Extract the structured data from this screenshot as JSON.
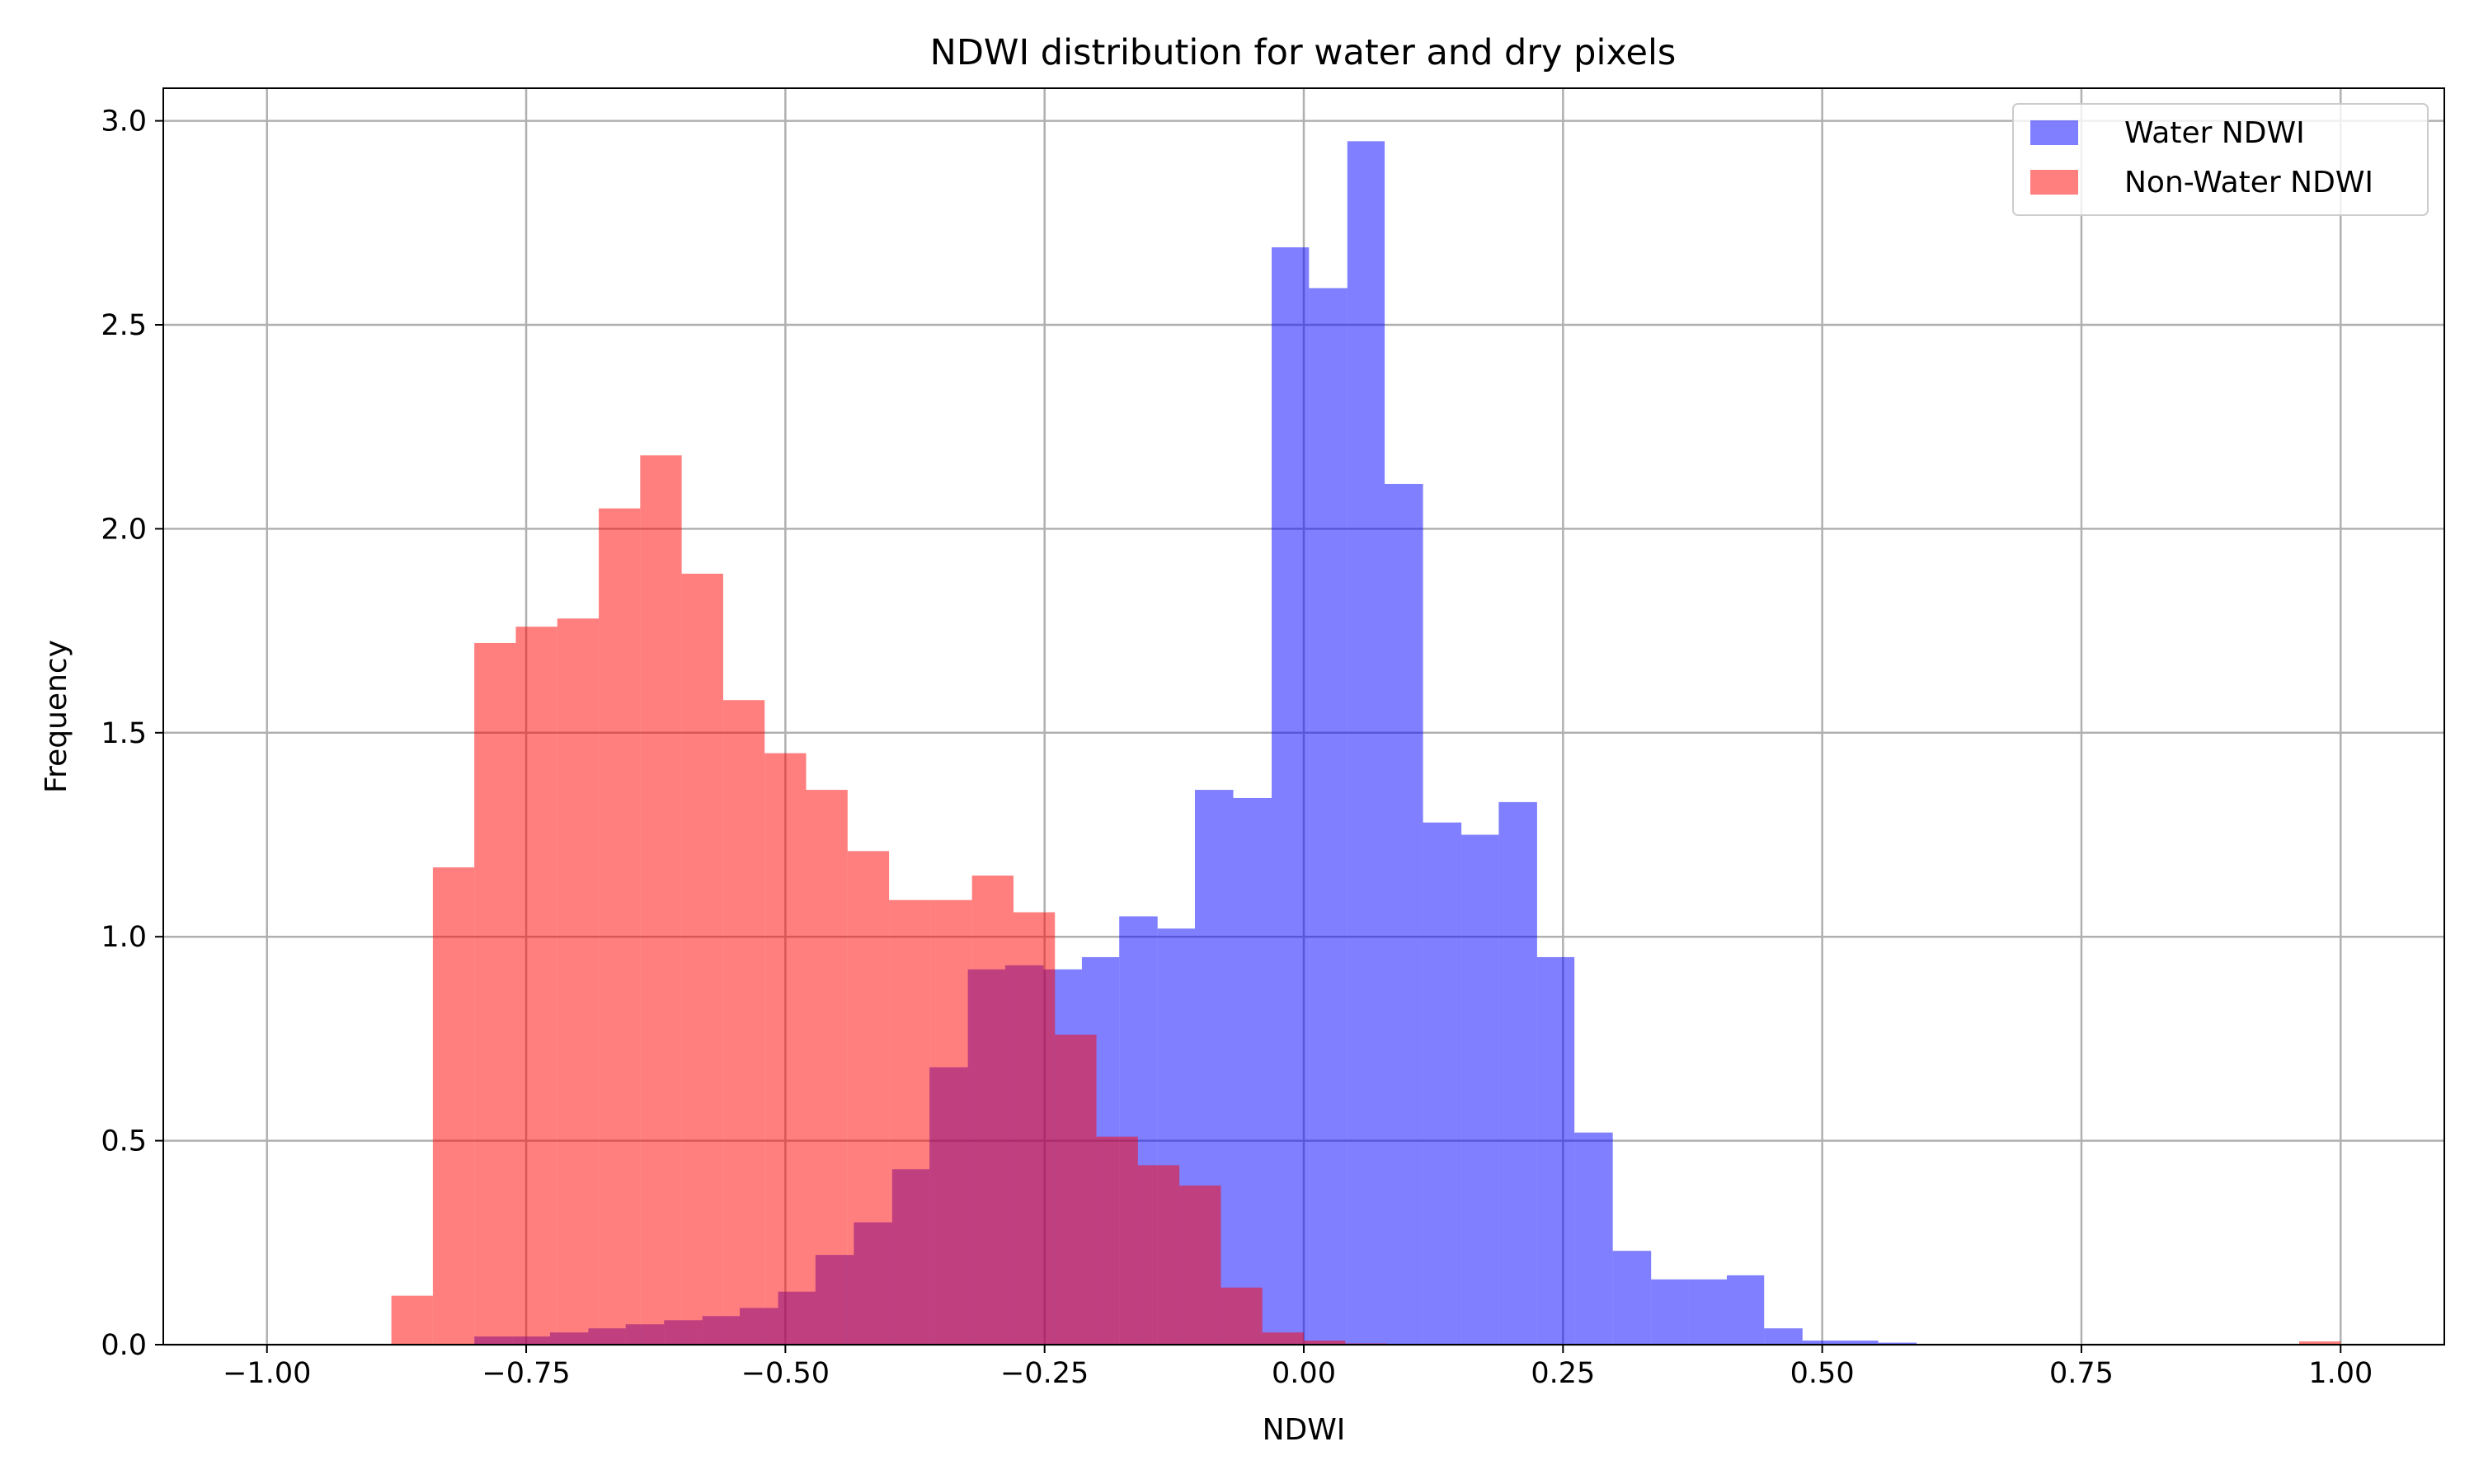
{
  "chart_data": {
    "type": "bar",
    "title": "NDWI distribution for water and dry pixels",
    "xlabel": "NDWI",
    "ylabel": "Frequency",
    "xlim": [
      -1.1,
      1.1
    ],
    "ylim": [
      0,
      3.08
    ],
    "xticks": [
      -1.0,
      -0.75,
      -0.5,
      -0.25,
      0.0,
      0.25,
      0.5,
      0.75,
      1.0
    ],
    "xtick_labels": [
      "−1.00",
      "−0.75",
      "−0.50",
      "−0.25",
      "0.00",
      "0.25",
      "0.50",
      "0.75",
      "1.00"
    ],
    "yticks": [
      0.0,
      0.5,
      1.0,
      1.5,
      2.0,
      2.5,
      3.0
    ],
    "ytick_labels": [
      "0.0",
      "0.5",
      "1.0",
      "1.5",
      "2.0",
      "2.5",
      "3.0"
    ],
    "grid": true,
    "legend_position": "top-right",
    "series": [
      {
        "name": "Water NDWI",
        "color": "#0000ff",
        "alpha": 0.5,
        "bin_edges": [
          -0.8,
          -0.763,
          -0.727,
          -0.69,
          -0.654,
          -0.617,
          -0.58,
          -0.544,
          -0.507,
          -0.471,
          -0.434,
          -0.397,
          -0.361,
          -0.324,
          -0.288,
          -0.251,
          -0.214,
          -0.178,
          -0.141,
          -0.105,
          -0.068,
          -0.031,
          0.005,
          0.042,
          0.078,
          0.115,
          0.152,
          0.188,
          0.225,
          0.261,
          0.298,
          0.335,
          0.371,
          0.408,
          0.444,
          0.481,
          0.518,
          0.554,
          0.591,
          0.627,
          0.664
        ],
        "values": [
          0.02,
          0.02,
          0.03,
          0.04,
          0.05,
          0.06,
          0.07,
          0.09,
          0.13,
          0.22,
          0.3,
          0.43,
          0.68,
          0.92,
          0.93,
          0.92,
          0.95,
          1.05,
          1.02,
          1.36,
          1.34,
          2.69,
          2.59,
          2.95,
          2.11,
          1.28,
          1.25,
          1.33,
          0.95,
          0.52,
          0.23,
          0.16,
          0.16,
          0.17,
          0.04,
          0.01,
          0.01,
          0.005,
          0.002,
          0.001
        ]
      },
      {
        "name": "Non-Water NDWI",
        "color": "#ff0000",
        "alpha": 0.5,
        "bin_edges": [
          -0.88,
          -0.84,
          -0.8,
          -0.76,
          -0.72,
          -0.68,
          -0.64,
          -0.6,
          -0.56,
          -0.52,
          -0.48,
          -0.44,
          -0.4,
          -0.36,
          -0.32,
          -0.28,
          -0.24,
          -0.2,
          -0.16,
          -0.12,
          -0.08,
          -0.04,
          0.0,
          0.04,
          0.08,
          0.12,
          0.16,
          0.2,
          0.24,
          0.28,
          0.32,
          0.36,
          0.4,
          0.44,
          0.48,
          0.52,
          0.56,
          0.6,
          0.64,
          0.68,
          0.72,
          0.76,
          0.8,
          0.84,
          0.88,
          0.92,
          0.96,
          1.0
        ],
        "values": [
          0.12,
          1.17,
          1.72,
          1.76,
          1.78,
          2.05,
          2.18,
          1.89,
          1.58,
          1.45,
          1.36,
          1.21,
          1.09,
          1.09,
          1.15,
          1.06,
          0.76,
          0.51,
          0.44,
          0.39,
          0.14,
          0.03,
          0.01,
          0.003,
          0.002,
          0.001,
          0.001,
          0.001,
          0.0,
          0.0,
          0.0,
          0.0,
          0.0,
          0.0,
          0.002,
          0.0,
          0.0,
          0.0,
          0.0,
          0.0,
          0.0,
          0.0,
          0.0,
          0.0,
          0.0,
          0.0,
          0.008
        ]
      }
    ]
  }
}
